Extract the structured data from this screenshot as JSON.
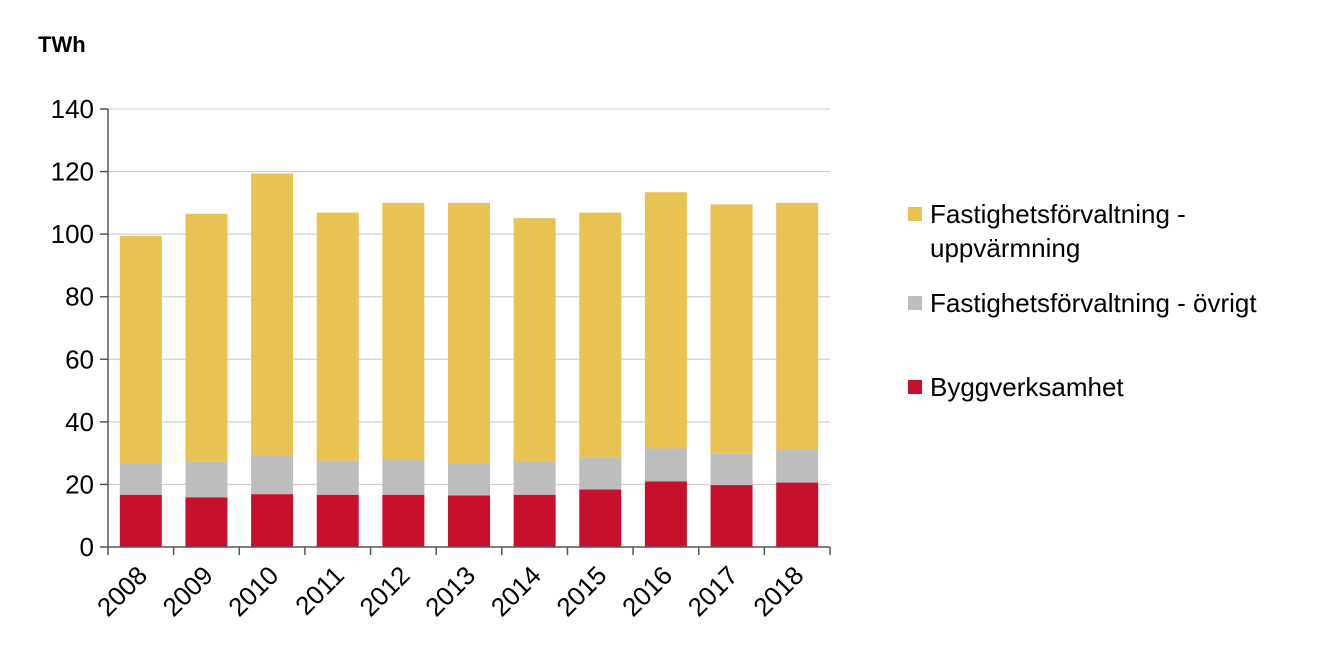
{
  "chart_data": {
    "type": "bar",
    "stacked": true,
    "ylabel": "TWh",
    "ylim": [
      0,
      140
    ],
    "yticks": [
      "0",
      "20",
      "40",
      "60",
      "80",
      "100",
      "120",
      "140"
    ],
    "categories": [
      "2008",
      "2009",
      "2010",
      "2011",
      "2012",
      "2013",
      "2014",
      "2015",
      "2016",
      "2017",
      "2018"
    ],
    "series": [
      {
        "name": "Byggverksamhet",
        "color": "#c8102e",
        "values": [
          16.7,
          15.9,
          16.9,
          16.7,
          16.7,
          16.5,
          16.7,
          18.4,
          21.0,
          19.8,
          20.6
        ]
      },
      {
        "name": "Fastighetsförvaltning - övrigt",
        "color": "#bdbdbd",
        "values": [
          10.1,
          11.3,
          12.5,
          10.9,
          11.3,
          10.3,
          10.6,
          10.1,
          10.5,
          10.0,
          10.4
        ]
      },
      {
        "name": "Fastighetsförvaltning - uppvärmning",
        "color": "#e8c252",
        "values": [
          72.6,
          79.3,
          90.0,
          79.3,
          82.0,
          83.2,
          77.8,
          78.4,
          81.9,
          79.7,
          79.0
        ]
      }
    ],
    "legend": {
      "position": "right",
      "order": [
        {
          "series_index": 2,
          "lines": [
            "Fastighetsförvaltning -",
            "uppvärmning"
          ]
        },
        {
          "series_index": 1,
          "lines": [
            "Fastighetsförvaltning - övrigt"
          ]
        },
        {
          "series_index": 0,
          "lines": [
            "Byggverksamhet"
          ]
        }
      ]
    },
    "grid": {
      "y": true,
      "color": "#c8c8c8"
    }
  }
}
